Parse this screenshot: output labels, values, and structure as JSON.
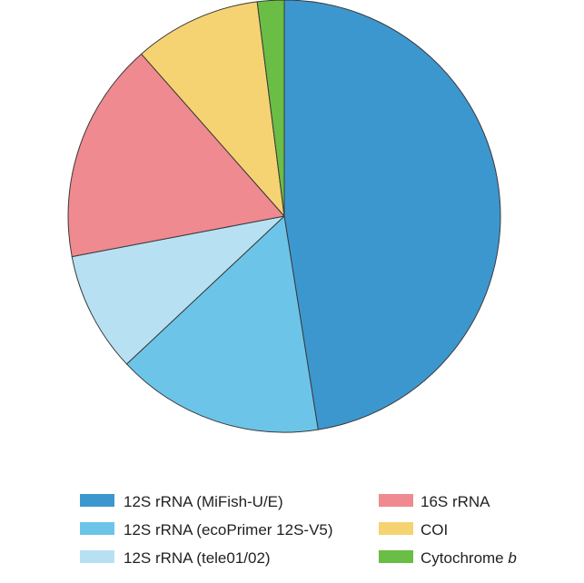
{
  "chart_data": {
    "type": "pie",
    "title": "",
    "start_angle_deg": 0,
    "direction": "clockwise",
    "slices": [
      {
        "label": "12S rRNA (MiFish-U/E)",
        "value": 47.5,
        "color": "#3d97cf"
      },
      {
        "label": "12S rRNA (ecoPrimer 12S-V5)",
        "value": 15.5,
        "color": "#6cc5e8"
      },
      {
        "label": "12S rRNA (tele01/02)",
        "value": 9.0,
        "color": "#b7e1f3"
      },
      {
        "label": "16S rRNA",
        "value": 16.5,
        "color": "#ef8a90"
      },
      {
        "label": "COI",
        "value": 9.5,
        "color": "#f6d372"
      },
      {
        "label": "Cytochrome b",
        "value": 2.0,
        "color": "#6abd45"
      }
    ],
    "legend": {
      "placement": "bottom",
      "columns": [
        [
          {
            "text": "12S rRNA (MiFish-U/E)",
            "color": "#3d97cf"
          },
          {
            "text": "12S rRNA (ecoPrimer 12S-V5)",
            "color": "#6cc5e8"
          },
          {
            "text": "12S rRNA (tele01/02)",
            "color": "#b7e1f3"
          }
        ],
        [
          {
            "text": "16S rRNA",
            "color": "#ef8a90"
          },
          {
            "text": "COI",
            "color": "#f6d372"
          },
          {
            "text_main": "Cytochrome ",
            "text_italic": "b",
            "color": "#6abd45"
          }
        ]
      ]
    }
  }
}
